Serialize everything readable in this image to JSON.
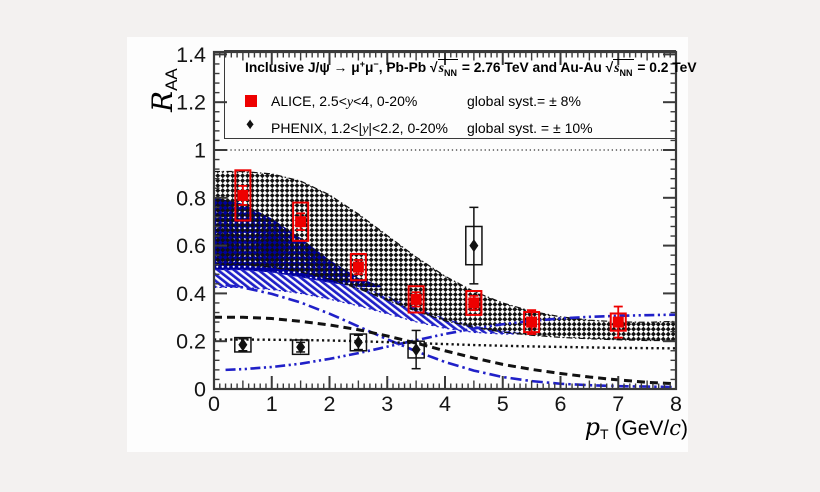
{
  "window": {
    "background": "#f3f1f0",
    "panel_background": "#fdfdfd"
  },
  "legend": {
    "title": {
      "pre": "Inclusive J/ψ ",
      "arrow": "→",
      "mu1": " μ",
      "sup1": "+",
      "mu2": "μ",
      "sup2": "−",
      "mid": ", Pb-Pb ",
      "sqrt_sym": "√",
      "s1": "s",
      "s1_sub": "NN",
      "eq1": " = 2.76 TeV and Au-Au ",
      "sqrt_sym2": "√",
      "s2": "s",
      "s2_sub": "NN",
      "eq2": " = 0.2 TeV"
    },
    "rows": [
      {
        "marker": "red-filled-square",
        "name_pre": "ALICE, 2.5<",
        "y_var": "y",
        "name_post": "<4, 0-20%",
        "syst_label": "global syst.= ± 8%"
      },
      {
        "marker": "black-filled-diamond",
        "marker_glyph": "♦",
        "name_pre": "PHENIX, 1.2<|",
        "y_var": "y",
        "name_post": "|<2.2, 0-20%",
        "syst_label": "global syst. = ± 10%"
      }
    ]
  },
  "axes": {
    "x": {
      "min": 0,
      "max": 8,
      "minor_step": 0.1,
      "tick_values": [
        0,
        1,
        2,
        3,
        4,
        5,
        6,
        7,
        8
      ],
      "tick_labels": [
        "0",
        "1",
        "2",
        "3",
        "4",
        "5",
        "6",
        "7",
        "8"
      ],
      "title": {
        "symbol": "p",
        "subscript": "T",
        "unit_pre": " (GeV/",
        "unit_italic": "c",
        "unit_post": ")"
      }
    },
    "y": {
      "min": 0,
      "max": 1.41,
      "minor_step": 0.04,
      "tick_values": [
        0,
        0.2,
        0.4,
        0.6,
        0.8,
        1,
        1.2,
        1.4
      ],
      "tick_labels": [
        "0",
        "0.2",
        "0.4",
        "0.6",
        "0.8",
        "1",
        "1.2",
        "1.4"
      ],
      "title": {
        "symbol": "R",
        "subscript": "AA"
      }
    }
  },
  "chart_data": {
    "type": "scatter",
    "title": "Inclusive J/ψ → μ+μ−, Pb-Pb √sNN = 2.76 TeV and Au-Au √sNN = 0.2 TeV",
    "xlabel": "pT (GeV/c)",
    "ylabel": "RAA",
    "xlim": [
      0,
      8
    ],
    "ylim": [
      0,
      1.41
    ],
    "grid": false,
    "legend_position": "top",
    "reference_line": {
      "y": 1.0,
      "style": "dotted"
    },
    "colors": {
      "red": "#ee0000",
      "navy": "#000099",
      "blue": "#2020c8",
      "black": "#111111",
      "frame": "#3a3a3a"
    },
    "series": [
      {
        "name": "ALICE",
        "label": "ALICE, 2.5<y<4, 0-20%",
        "global_syst": "± 8%",
        "marker": "filled-square",
        "color_key": "red",
        "syst_box_halfwidth": 0.13,
        "points": [
          {
            "x": 0.5,
            "y": 0.81,
            "stat": 0.04,
            "syst": 0.105
          },
          {
            "x": 1.5,
            "y": 0.7,
            "stat": 0.035,
            "syst": 0.08
          },
          {
            "x": 2.5,
            "y": 0.51,
            "stat": 0.03,
            "syst": 0.055
          },
          {
            "x": 3.5,
            "y": 0.375,
            "stat": 0.03,
            "syst": 0.055
          },
          {
            "x": 4.5,
            "y": 0.36,
            "stat": 0.03,
            "syst": 0.05
          },
          {
            "x": 5.5,
            "y": 0.28,
            "stat": 0.05,
            "syst": 0.042
          },
          {
            "x": 7.0,
            "y": 0.28,
            "stat": 0.065,
            "syst": 0.036
          }
        ]
      },
      {
        "name": "PHENIX",
        "label": "PHENIX, 1.2<|y|<2.2, 0-20%",
        "global_syst": "± 10%",
        "marker": "filled-diamond",
        "color_key": "black",
        "syst_box_halfwidth": 0.14,
        "points": [
          {
            "x": 0.5,
            "y": 0.185,
            "stat": 0.025,
            "syst": 0.03
          },
          {
            "x": 1.5,
            "y": 0.175,
            "stat": 0.02,
            "syst": 0.03
          },
          {
            "x": 2.5,
            "y": 0.195,
            "stat": 0.03,
            "syst": 0.035
          },
          {
            "x": 3.5,
            "y": 0.165,
            "stat": 0.08,
            "syst": 0.035
          },
          {
            "x": 4.5,
            "y": 0.6,
            "stat": 0.16,
            "syst": 0.08
          }
        ]
      }
    ],
    "bands": [
      {
        "name": "navy-dotted-band",
        "pattern": "navy-dots",
        "edge_style": "solid",
        "edge_color_key": "navy",
        "x": [
          0,
          0.5,
          1,
          1.5,
          2,
          2.5,
          2.9
        ],
        "upper": [
          0.8,
          0.772,
          0.71,
          0.628,
          0.537,
          0.462,
          0.428
        ],
        "lower": [
          0.5,
          0.5,
          0.49,
          0.47,
          0.447,
          0.43,
          0.428
        ]
      },
      {
        "name": "blue-hatch-band",
        "pattern": "blue-hatch",
        "edge_style": "dotted",
        "edge_color_key": "blue",
        "x": [
          0,
          0.5,
          1,
          1.5,
          2,
          2.5,
          3,
          3.5,
          4,
          4.5,
          5,
          5.3
        ],
        "upper": [
          0.5,
          0.5,
          0.49,
          0.47,
          0.447,
          0.43,
          0.388,
          0.338,
          0.295,
          0.262,
          0.242,
          0.235
        ],
        "lower": [
          0.425,
          0.425,
          0.416,
          0.4,
          0.376,
          0.348,
          0.315,
          0.281,
          0.254,
          0.237,
          0.23,
          0.23
        ]
      },
      {
        "name": "black-crosshatch-band",
        "pattern": "black-check",
        "edge_style": "bandedge",
        "edge_color_key": "black",
        "x": [
          0,
          0.5,
          1,
          1.5,
          2,
          2.5,
          3,
          3.5,
          4,
          4.5,
          5,
          5.5,
          6,
          6.5,
          7,
          7.5,
          8
        ],
        "upper": [
          0.91,
          0.91,
          0.9,
          0.87,
          0.812,
          0.732,
          0.642,
          0.552,
          0.472,
          0.408,
          0.36,
          0.325,
          0.302,
          0.288,
          0.281,
          0.279,
          0.283
        ],
        "lower": [
          0.52,
          0.52,
          0.51,
          0.49,
          0.46,
          0.42,
          0.372,
          0.325,
          0.286,
          0.258,
          0.238,
          0.225,
          0.216,
          0.21,
          0.206,
          0.203,
          0.202
        ]
      }
    ],
    "curves": [
      {
        "name": "blue-dashdot-falling",
        "color_key": "blue",
        "style": "dashdot",
        "width": 2.6,
        "x": [
          0.2,
          0.5,
          1,
          1.5,
          2,
          2.5,
          3,
          3.5,
          4,
          4.5,
          5,
          5.5,
          6,
          6.5,
          7,
          7.5,
          8
        ],
        "y": [
          0.435,
          0.425,
          0.398,
          0.362,
          0.315,
          0.262,
          0.208,
          0.158,
          0.113,
          0.077,
          0.05,
          0.033,
          0.022,
          0.016,
          0.012,
          0.01,
          0.008
        ]
      },
      {
        "name": "blue-dashdotdot-rising",
        "color_key": "blue",
        "style": "dashdotdot",
        "width": 2.6,
        "x": [
          0.2,
          0.5,
          1,
          1.5,
          2,
          2.5,
          3,
          3.5,
          4,
          4.5,
          5,
          5.5,
          6,
          6.5,
          7,
          7.5,
          8
        ],
        "y": [
          0.08,
          0.083,
          0.092,
          0.106,
          0.126,
          0.15,
          0.177,
          0.204,
          0.23,
          0.253,
          0.271,
          0.285,
          0.295,
          0.302,
          0.306,
          0.309,
          0.311
        ]
      },
      {
        "name": "black-dashed",
        "color_key": "black",
        "style": "dashed",
        "width": 3,
        "x": [
          0,
          0.5,
          1,
          1.5,
          2,
          2.5,
          3,
          3.5,
          4,
          4.5,
          5,
          5.5,
          6,
          6.5,
          7,
          7.5,
          8
        ],
        "y": [
          0.3,
          0.3,
          0.295,
          0.283,
          0.268,
          0.248,
          0.222,
          0.192,
          0.16,
          0.13,
          0.103,
          0.082,
          0.065,
          0.05,
          0.038,
          0.028,
          0.022
        ]
      },
      {
        "name": "black-dotted",
        "color_key": "black",
        "style": "dotted",
        "width": 2.4,
        "x": [
          0,
          0.5,
          1,
          1.5,
          2,
          2.5,
          3,
          3.5,
          4,
          4.5,
          5,
          5.5,
          6,
          6.5,
          7,
          7.5,
          8
        ],
        "y": [
          0.207,
          0.207,
          0.206,
          0.205,
          0.203,
          0.2,
          0.196,
          0.192,
          0.188,
          0.184,
          0.181,
          0.178,
          0.176,
          0.174,
          0.172,
          0.171,
          0.17
        ]
      }
    ]
  }
}
